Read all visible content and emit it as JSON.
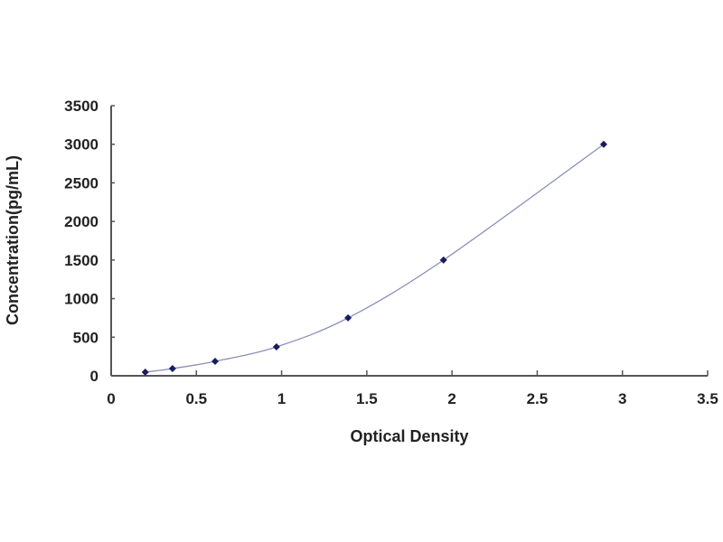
{
  "chart_data": {
    "type": "scatter",
    "title": "",
    "xlabel": "Optical Density",
    "ylabel": "Concentration(pg/mL)",
    "xlim": [
      0,
      3.5
    ],
    "ylim": [
      0,
      3500
    ],
    "xticks": [
      "0",
      "0.5",
      "1",
      "1.5",
      "2",
      "2.5",
      "3",
      "3.5"
    ],
    "yticks": [
      "0",
      "500",
      "1000",
      "1500",
      "2000",
      "2500",
      "3000",
      "3500"
    ],
    "grid": false,
    "trendline": "smooth curve",
    "series": [
      {
        "x": [
          0.2,
          0.36,
          0.61,
          0.97,
          1.39,
          1.95,
          2.89
        ],
        "y": [
          46.88,
          93.75,
          187.5,
          375,
          750,
          1500,
          3000
        ]
      }
    ],
    "colors": {
      "marker": "#1a1a5e",
      "line": "#8a8fb8",
      "axis": "#555555"
    }
  }
}
